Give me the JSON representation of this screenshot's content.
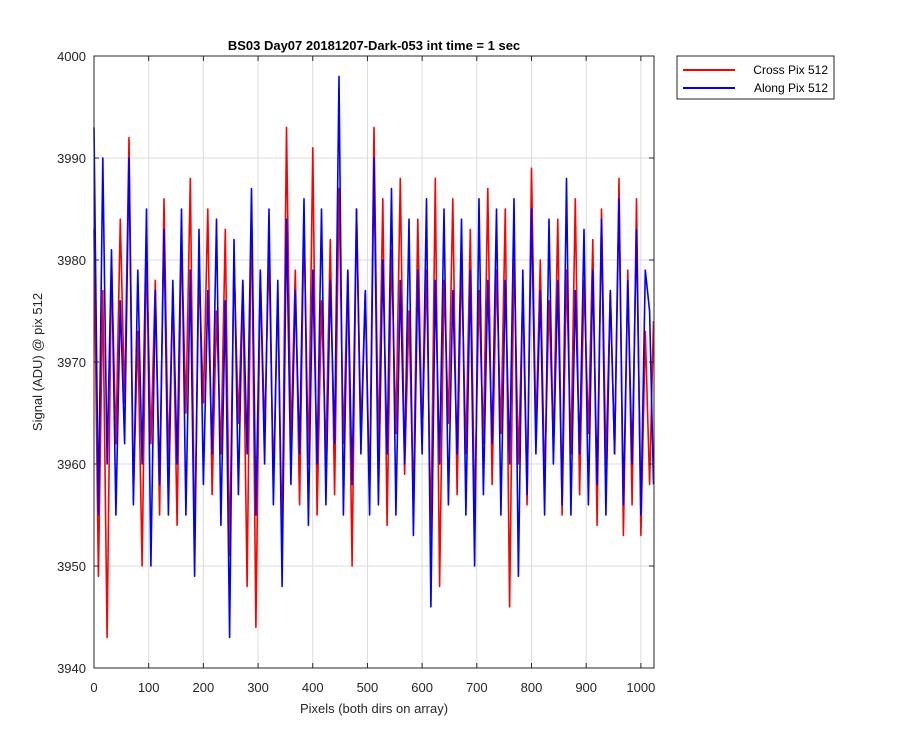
{
  "chart_data": {
    "type": "line",
    "title": "BS03 Day07 20181207-Dark-053 int time = 1 sec",
    "xlabel": "Pixels (both dirs on array)",
    "ylabel": "Signal (ADU) @ pix 512",
    "xlim": [
      0,
      1024
    ],
    "ylim": [
      3940,
      4000
    ],
    "xticks": [
      0,
      100,
      200,
      300,
      400,
      500,
      600,
      700,
      800,
      900,
      1000
    ],
    "yticks": [
      3940,
      3950,
      3960,
      3970,
      3980,
      3990,
      4000
    ],
    "grid": true,
    "legend_position": "outside-top-right",
    "series": [
      {
        "name": "Cross Pix 512",
        "color": "#ff0000",
        "x": [
          0,
          8,
          16,
          24,
          32,
          40,
          48,
          56,
          64,
          72,
          80,
          88,
          96,
          104,
          112,
          120,
          128,
          136,
          144,
          152,
          160,
          168,
          176,
          184,
          192,
          200,
          208,
          216,
          224,
          232,
          240,
          248,
          256,
          264,
          272,
          280,
          288,
          296,
          304,
          312,
          320,
          328,
          336,
          344,
          352,
          360,
          368,
          376,
          384,
          392,
          400,
          408,
          416,
          424,
          432,
          440,
          448,
          456,
          464,
          472,
          480,
          488,
          496,
          504,
          512,
          520,
          528,
          536,
          544,
          552,
          560,
          568,
          576,
          584,
          592,
          600,
          608,
          616,
          624,
          632,
          640,
          648,
          656,
          664,
          672,
          680,
          688,
          696,
          704,
          712,
          720,
          728,
          736,
          744,
          752,
          760,
          768,
          776,
          784,
          792,
          800,
          808,
          816,
          824,
          832,
          840,
          848,
          856,
          864,
          872,
          880,
          888,
          896,
          904,
          912,
          920,
          928,
          936,
          944,
          952,
          960,
          968,
          976,
          984,
          992,
          1000,
          1008,
          1016,
          1023
        ],
        "y": [
          3983,
          3949,
          3977,
          3943,
          3980,
          3962,
          3984,
          3966,
          3992,
          3957,
          3973,
          3950,
          3981,
          3962,
          3978,
          3955,
          3986,
          3960,
          3977,
          3954,
          3982,
          3965,
          3988,
          3952,
          3979,
          3966,
          3985,
          3957,
          3975,
          3961,
          3983,
          3951,
          3980,
          3964,
          3978,
          3948,
          3986,
          3944,
          3979,
          3963,
          3981,
          3958,
          3977,
          3952,
          3993,
          3962,
          3979,
          3956,
          3984,
          3960,
          3991,
          3955,
          3976,
          3961,
          3982,
          3957,
          3987,
          3962,
          3979,
          3950,
          3985,
          3963,
          3977,
          3957,
          3993,
          3961,
          3986,
          3954,
          3981,
          3963,
          3988,
          3959,
          3975,
          3956,
          3984,
          3962,
          3979,
          3953,
          3988,
          3948,
          3978,
          3964,
          3986,
          3957,
          3980,
          3961,
          3983,
          3955,
          3977,
          3962,
          3987,
          3958,
          3979,
          3963,
          3985,
          3946,
          3981,
          3960,
          3977,
          3956,
          3989,
          3963,
          3980,
          3958,
          3976,
          3962,
          3984,
          3955,
          3979,
          3961,
          3986,
          3957,
          3978,
          3963,
          3982,
          3954,
          3985,
          3960,
          3977,
          3961,
          3988,
          3953,
          3979,
          3956,
          3986,
          3953,
          3973,
          3958,
          3974
        ]
      },
      {
        "name": "Along Pix 512",
        "color": "#0000ff",
        "x": [
          0,
          8,
          16,
          24,
          32,
          40,
          48,
          56,
          64,
          72,
          80,
          88,
          96,
          104,
          112,
          120,
          128,
          136,
          144,
          152,
          160,
          168,
          176,
          184,
          192,
          200,
          208,
          216,
          224,
          232,
          240,
          248,
          256,
          264,
          272,
          280,
          288,
          296,
          304,
          312,
          320,
          328,
          336,
          344,
          352,
          360,
          368,
          376,
          384,
          392,
          400,
          408,
          416,
          424,
          432,
          440,
          448,
          456,
          464,
          472,
          480,
          488,
          496,
          504,
          512,
          520,
          528,
          536,
          544,
          552,
          560,
          568,
          576,
          584,
          592,
          600,
          608,
          616,
          624,
          632,
          640,
          648,
          656,
          664,
          672,
          680,
          688,
          696,
          704,
          712,
          720,
          728,
          736,
          744,
          752,
          760,
          768,
          776,
          784,
          792,
          800,
          808,
          816,
          824,
          832,
          840,
          848,
          856,
          864,
          872,
          880,
          888,
          896,
          904,
          912,
          920,
          928,
          936,
          944,
          952,
          960,
          968,
          976,
          984,
          992,
          1000,
          1008,
          1016,
          1023
        ],
        "y": [
          3993,
          3955,
          3990,
          3960,
          3981,
          3955,
          3976,
          3962,
          3990,
          3956,
          3979,
          3960,
          3985,
          3950,
          3977,
          3958,
          3983,
          3955,
          3978,
          3960,
          3985,
          3955,
          3979,
          3949,
          3983,
          3958,
          3977,
          3961,
          3984,
          3954,
          3976,
          3943,
          3982,
          3957,
          3978,
          3961,
          3987,
          3955,
          3979,
          3960,
          3985,
          3956,
          3978,
          3948,
          3984,
          3958,
          3977,
          3961,
          3986,
          3954,
          3979,
          3960,
          3985,
          3956,
          3978,
          3962,
          3998,
          3955,
          3979,
          3958,
          3985,
          3961,
          3977,
          3955,
          3990,
          3956,
          3980,
          3961,
          3987,
          3955,
          3978,
          3960,
          3984,
          3953,
          3979,
          3961,
          3986,
          3946,
          3978,
          3960,
          3985,
          3956,
          3977,
          3961,
          3984,
          3955,
          3979,
          3950,
          3986,
          3957,
          3978,
          3962,
          3985,
          3955,
          3978,
          3960,
          3986,
          3949,
          3979,
          3957,
          3985,
          3961,
          3977,
          3955,
          3984,
          3960,
          3978,
          3956,
          3988,
          3955,
          3977,
          3961,
          3983,
          3956,
          3979,
          3958,
          3984,
          3955,
          3977,
          3961,
          3986,
          3956,
          3978,
          3960,
          3983,
          3955,
          3979,
          3975,
          3958
        ]
      }
    ]
  }
}
